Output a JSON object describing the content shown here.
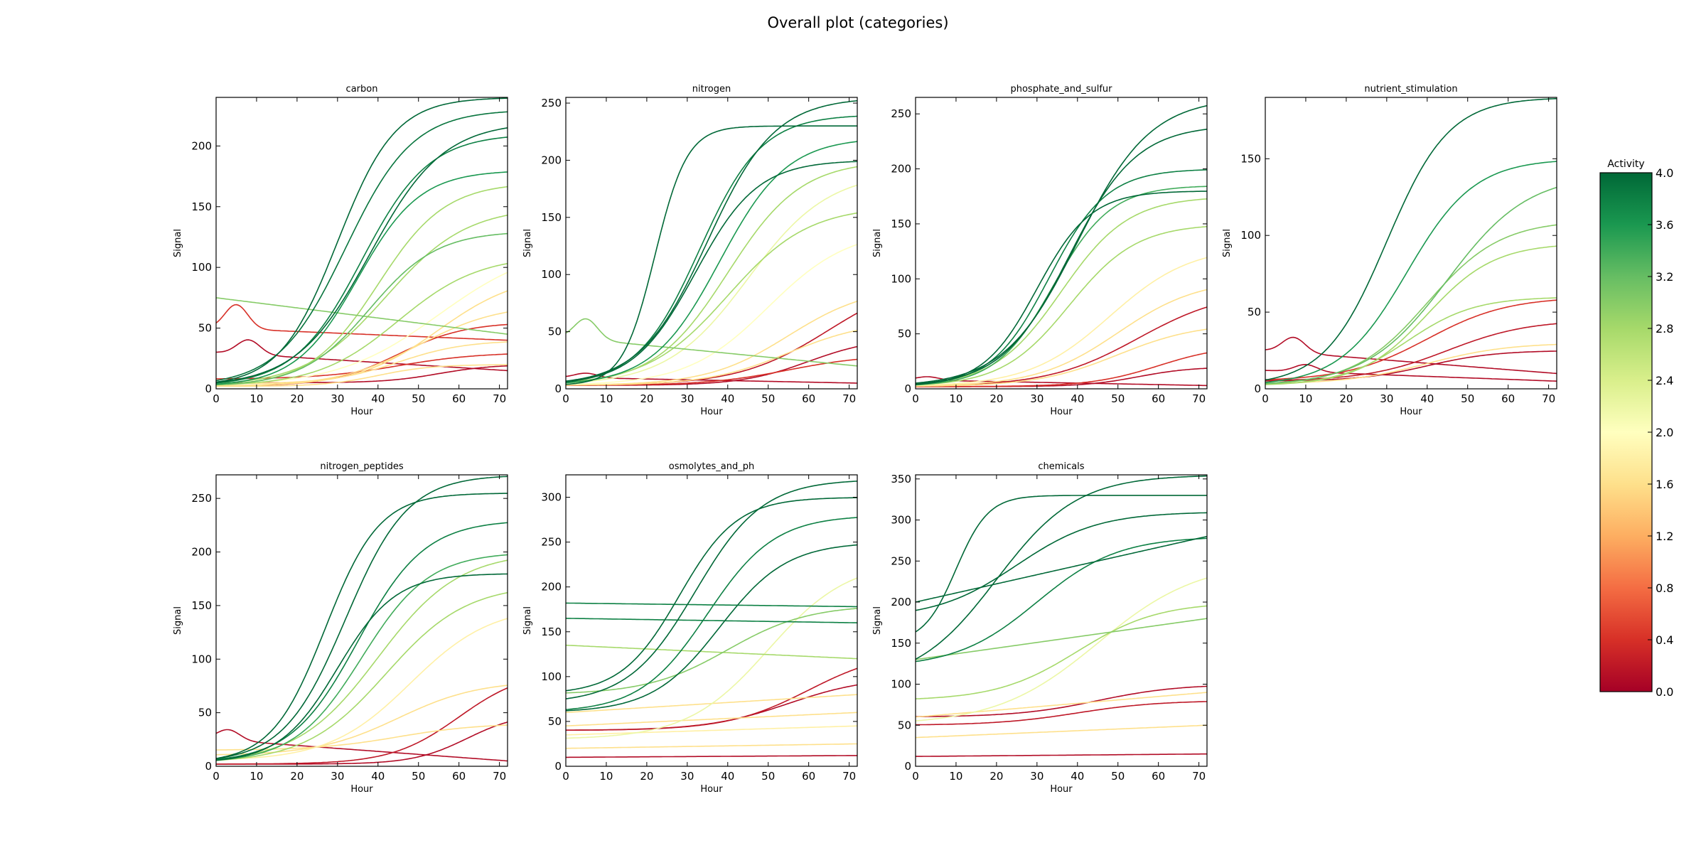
{
  "figure": {
    "title": "Overall plot (categories)",
    "colorbar": {
      "label": "Activity",
      "ticks": [
        "0.0",
        "0.4",
        "0.8",
        "1.2",
        "1.6",
        "2.0",
        "2.4",
        "2.8",
        "3.2",
        "3.6",
        "4.0"
      ],
      "range": [
        0,
        4
      ],
      "colormap": "RdYlGn",
      "stops": [
        "#a50026",
        "#d73027",
        "#f46d43",
        "#fdae61",
        "#fee08b",
        "#ffffbf",
        "#d9ef8b",
        "#a6d96a",
        "#66bd63",
        "#1a9850",
        "#006837"
      ]
    }
  },
  "chart_data": [
    {
      "type": "line",
      "title": "carbon",
      "xlabel": "Hour",
      "ylabel": "Signal",
      "xlim": [
        0,
        72
      ],
      "ylim": [
        0,
        240
      ],
      "xticks": [
        0,
        10,
        20,
        30,
        40,
        50,
        60,
        70
      ],
      "yticks": [
        0,
        50,
        100,
        150,
        200
      ],
      "series": [
        {
          "kind": "flat",
          "activity": 0.1,
          "start": 30,
          "end": 15,
          "peak_t": 8
        },
        {
          "kind": "sig",
          "activity": 0.1,
          "max": 20,
          "mid": 55,
          "k": 0.15,
          "base": 5
        },
        {
          "kind": "sig",
          "activity": 0.4,
          "max": 30,
          "mid": 45,
          "k": 0.1,
          "base": 8
        },
        {
          "kind": "sig",
          "activity": 0.4,
          "max": 55,
          "mid": 45,
          "k": 0.12,
          "base": 2
        },
        {
          "kind": "flat",
          "activity": 0.4,
          "start": 50,
          "end": 40,
          "peak_t": 5
        },
        {
          "kind": "sig",
          "activity": 1.6,
          "max": 20,
          "mid": 40,
          "k": 0.15,
          "base": 2
        },
        {
          "kind": "sig",
          "activity": 1.6,
          "max": 40,
          "mid": 45,
          "k": 0.12,
          "base": 4
        },
        {
          "kind": "sig",
          "activity": 1.6,
          "max": 70,
          "mid": 50,
          "k": 0.1,
          "base": 2
        },
        {
          "kind": "sig",
          "activity": 1.6,
          "max": 95,
          "mid": 55,
          "k": 0.1,
          "base": 2
        },
        {
          "kind": "sig",
          "activity": 2.0,
          "max": 120,
          "mid": 55,
          "k": 0.08,
          "base": 2
        },
        {
          "kind": "sig",
          "activity": 2.8,
          "max": 110,
          "mid": 45,
          "k": 0.1,
          "base": 2
        },
        {
          "kind": "sig",
          "activity": 2.8,
          "max": 150,
          "mid": 42,
          "k": 0.1,
          "base": 2
        },
        {
          "kind": "sig",
          "activity": 2.8,
          "max": 170,
          "mid": 40,
          "k": 0.12,
          "base": 2
        },
        {
          "kind": "sig",
          "activity": 3.2,
          "max": 130,
          "mid": 38,
          "k": 0.12,
          "base": 2
        },
        {
          "kind": "flat",
          "activity": 3.0,
          "start": 75,
          "end": 45,
          "peak_t": 0
        },
        {
          "kind": "sig",
          "activity": 3.6,
          "max": 180,
          "mid": 35,
          "k": 0.13,
          "base": 2
        },
        {
          "kind": "sig",
          "activity": 3.8,
          "max": 210,
          "mid": 36,
          "k": 0.12,
          "base": 2
        },
        {
          "kind": "sig",
          "activity": 3.9,
          "max": 230,
          "mid": 32,
          "k": 0.12,
          "base": 2
        },
        {
          "kind": "sig",
          "activity": 4.0,
          "max": 240,
          "mid": 30,
          "k": 0.14,
          "base": 2
        },
        {
          "kind": "sig",
          "activity": 4.0,
          "max": 220,
          "mid": 38,
          "k": 0.11,
          "base": 2
        }
      ]
    },
    {
      "type": "line",
      "title": "nitrogen",
      "xlabel": "Hour",
      "ylabel": "Signal",
      "xlim": [
        0,
        72
      ],
      "ylim": [
        0,
        255
      ],
      "xticks": [
        0,
        10,
        20,
        30,
        40,
        50,
        60,
        70
      ],
      "yticks": [
        0,
        50,
        100,
        150,
        200,
        250
      ],
      "series": [
        {
          "kind": "flat",
          "activity": 0.1,
          "start": 10,
          "end": 5,
          "peak_t": 5
        },
        {
          "kind": "sig",
          "activity": 0.1,
          "max": 45,
          "mid": 60,
          "k": 0.12,
          "base": 3
        },
        {
          "kind": "sig",
          "activity": 0.2,
          "max": 100,
          "mid": 65,
          "k": 0.09,
          "base": 3
        },
        {
          "kind": "sig",
          "activity": 0.4,
          "max": 30,
          "mid": 55,
          "k": 0.1,
          "base": 3
        },
        {
          "kind": "sig",
          "activity": 1.6,
          "max": 60,
          "mid": 55,
          "k": 0.1,
          "base": 3
        },
        {
          "kind": "sig",
          "activity": 1.6,
          "max": 90,
          "mid": 55,
          "k": 0.1,
          "base": 3
        },
        {
          "kind": "sig",
          "activity": 2.0,
          "max": 140,
          "mid": 50,
          "k": 0.1,
          "base": 3
        },
        {
          "kind": "sig",
          "activity": 2.2,
          "max": 190,
          "mid": 45,
          "k": 0.1,
          "base": 3
        },
        {
          "kind": "sig",
          "activity": 2.8,
          "max": 160,
          "mid": 40,
          "k": 0.1,
          "base": 3
        },
        {
          "kind": "sig",
          "activity": 2.8,
          "max": 200,
          "mid": 40,
          "k": 0.11,
          "base": 3
        },
        {
          "kind": "flat",
          "activity": 3.0,
          "start": 45,
          "end": 20,
          "peak_t": 5
        },
        {
          "kind": "sig",
          "activity": 3.6,
          "max": 220,
          "mid": 38,
          "k": 0.12,
          "base": 3
        },
        {
          "kind": "sig",
          "activity": 3.8,
          "max": 240,
          "mid": 33,
          "k": 0.13,
          "base": 3
        },
        {
          "kind": "sig",
          "activity": 4.0,
          "max": 255,
          "mid": 35,
          "k": 0.12,
          "base": 3
        },
        {
          "kind": "sig",
          "activity": 4.0,
          "max": 230,
          "mid": 22,
          "k": 0.25,
          "base": 3
        },
        {
          "kind": "sig",
          "activity": 4.0,
          "max": 200,
          "mid": 32,
          "k": 0.13,
          "base": 3
        }
      ]
    },
    {
      "type": "line",
      "title": "phosphate_and_sulfur",
      "xlabel": "Hour",
      "ylabel": "Signal",
      "xlim": [
        0,
        72
      ],
      "ylim": [
        0,
        265
      ],
      "xticks": [
        0,
        10,
        20,
        30,
        40,
        50,
        60,
        70
      ],
      "yticks": [
        0,
        50,
        100,
        150,
        200,
        250
      ],
      "series": [
        {
          "kind": "flat",
          "activity": 0.1,
          "start": 8,
          "end": 3,
          "peak_t": 3
        },
        {
          "kind": "sig",
          "activity": 0.1,
          "max": 20,
          "mid": 55,
          "k": 0.15,
          "base": 2
        },
        {
          "kind": "sig",
          "activity": 0.2,
          "max": 90,
          "mid": 55,
          "k": 0.09,
          "base": 2
        },
        {
          "kind": "sig",
          "activity": 0.4,
          "max": 40,
          "mid": 60,
          "k": 0.12,
          "base": 2
        },
        {
          "kind": "sig",
          "activity": 1.6,
          "max": 60,
          "mid": 50,
          "k": 0.1,
          "base": 2
        },
        {
          "kind": "sig",
          "activity": 1.6,
          "max": 100,
          "mid": 50,
          "k": 0.1,
          "base": 2
        },
        {
          "kind": "sig",
          "activity": 1.8,
          "max": 130,
          "mid": 48,
          "k": 0.1,
          "base": 2
        },
        {
          "kind": "sig",
          "activity": 2.8,
          "max": 150,
          "mid": 38,
          "k": 0.12,
          "base": 2
        },
        {
          "kind": "sig",
          "activity": 2.8,
          "max": 175,
          "mid": 36,
          "k": 0.12,
          "base": 2
        },
        {
          "kind": "sig",
          "activity": 3.4,
          "max": 185,
          "mid": 34,
          "k": 0.14,
          "base": 2
        },
        {
          "kind": "sig",
          "activity": 3.8,
          "max": 200,
          "mid": 33,
          "k": 0.14,
          "base": 2
        },
        {
          "kind": "sig",
          "activity": 4.0,
          "max": 240,
          "mid": 38,
          "k": 0.12,
          "base": 2
        },
        {
          "kind": "sig",
          "activity": 4.0,
          "max": 265,
          "mid": 40,
          "k": 0.11,
          "base": 2
        },
        {
          "kind": "sig",
          "activity": 4.0,
          "max": 180,
          "mid": 30,
          "k": 0.15,
          "base": 2
        }
      ]
    },
    {
      "type": "line",
      "title": "nutrient_stimulation",
      "xlabel": "Hour",
      "ylabel": "Signal",
      "xlim": [
        0,
        72
      ],
      "ylim": [
        0,
        190
      ],
      "xticks": [
        0,
        10,
        20,
        30,
        40,
        50,
        60,
        70
      ],
      "yticks": [
        0,
        50,
        100,
        150
      ],
      "series": [
        {
          "kind": "flat",
          "activity": 0.1,
          "start": 12,
          "end": 5,
          "peak_t": 10
        },
        {
          "kind": "flat",
          "activity": 0.1,
          "start": 25,
          "end": 10,
          "peak_t": 7
        },
        {
          "kind": "sig",
          "activity": 0.1,
          "max": 25,
          "mid": 40,
          "k": 0.12,
          "base": 5
        },
        {
          "kind": "sig",
          "activity": 0.2,
          "max": 45,
          "mid": 45,
          "k": 0.1,
          "base": 5
        },
        {
          "kind": "sig",
          "activity": 0.4,
          "max": 60,
          "mid": 40,
          "k": 0.1,
          "base": 5
        },
        {
          "kind": "sig",
          "activity": 1.6,
          "max": 30,
          "mid": 40,
          "k": 0.1,
          "base": 3
        },
        {
          "kind": "sig",
          "activity": 2.8,
          "max": 60,
          "mid": 35,
          "k": 0.12,
          "base": 2
        },
        {
          "kind": "sig",
          "activity": 2.8,
          "max": 95,
          "mid": 40,
          "k": 0.12,
          "base": 2
        },
        {
          "kind": "sig",
          "activity": 3.0,
          "max": 110,
          "mid": 40,
          "k": 0.11,
          "base": 2
        },
        {
          "kind": "sig",
          "activity": 3.2,
          "max": 140,
          "mid": 45,
          "k": 0.1,
          "base": 2
        },
        {
          "kind": "sig",
          "activity": 3.6,
          "max": 150,
          "mid": 35,
          "k": 0.12,
          "base": 2
        },
        {
          "kind": "sig",
          "activity": 4.0,
          "max": 190,
          "mid": 30,
          "k": 0.13,
          "base": 2
        }
      ]
    },
    {
      "type": "line",
      "title": "nitrogen_peptides",
      "xlabel": "Hour",
      "ylabel": "Signal",
      "xlim": [
        0,
        72
      ],
      "ylim": [
        0,
        272
      ],
      "xticks": [
        0,
        10,
        20,
        30,
        40,
        50,
        60,
        70
      ],
      "yticks": [
        0,
        50,
        100,
        150,
        200,
        250
      ],
      "series": [
        {
          "kind": "flat",
          "activity": 0.1,
          "start": 25,
          "end": 5,
          "peak_t": 3
        },
        {
          "kind": "sig",
          "activity": 0.1,
          "max": 50,
          "mid": 62,
          "k": 0.15,
          "base": 2
        },
        {
          "kind": "sig",
          "activity": 0.2,
          "max": 90,
          "mid": 60,
          "k": 0.12,
          "base": 2
        },
        {
          "kind": "sig",
          "activity": 1.6,
          "max": 40,
          "mid": 45,
          "k": 0.1,
          "base": 15
        },
        {
          "kind": "sig",
          "activity": 1.6,
          "max": 80,
          "mid": 45,
          "k": 0.1,
          "base": 10
        },
        {
          "kind": "sig",
          "activity": 1.8,
          "max": 150,
          "mid": 48,
          "k": 0.1,
          "base": 5
        },
        {
          "kind": "sig",
          "activity": 2.8,
          "max": 170,
          "mid": 42,
          "k": 0.1,
          "base": 3
        },
        {
          "kind": "sig",
          "activity": 2.8,
          "max": 200,
          "mid": 40,
          "k": 0.1,
          "base": 3
        },
        {
          "kind": "sig",
          "activity": 3.4,
          "max": 200,
          "mid": 36,
          "k": 0.12,
          "base": 3
        },
        {
          "kind": "sig",
          "activity": 3.8,
          "max": 230,
          "mid": 35,
          "k": 0.12,
          "base": 3
        },
        {
          "kind": "sig",
          "activity": 4.0,
          "max": 272,
          "mid": 32,
          "k": 0.13,
          "base": 3
        },
        {
          "kind": "sig",
          "activity": 4.0,
          "max": 255,
          "mid": 27,
          "k": 0.15,
          "base": 3
        },
        {
          "kind": "sig",
          "activity": 4.0,
          "max": 180,
          "mid": 30,
          "k": 0.14,
          "base": 3
        }
      ]
    },
    {
      "type": "line",
      "title": "osmolytes_and_ph",
      "xlabel": "Hour",
      "ylabel": "Signal",
      "xlim": [
        0,
        72
      ],
      "ylim": [
        0,
        325
      ],
      "xticks": [
        0,
        10,
        20,
        30,
        40,
        50,
        60,
        70
      ],
      "yticks": [
        0,
        50,
        100,
        150,
        200,
        250,
        300
      ],
      "series": [
        {
          "kind": "flat",
          "activity": 0.1,
          "start": 10,
          "end": 12,
          "peak_t": 0
        },
        {
          "kind": "sig",
          "activity": 0.1,
          "max": 100,
          "mid": 55,
          "k": 0.1,
          "base": 40
        },
        {
          "kind": "sig",
          "activity": 0.2,
          "max": 130,
          "mid": 60,
          "k": 0.1,
          "base": 40
        },
        {
          "kind": "flat",
          "activity": 1.6,
          "start": 20,
          "end": 25,
          "peak_t": 0
        },
        {
          "kind": "flat",
          "activity": 1.6,
          "start": 45,
          "end": 60,
          "peak_t": 0
        },
        {
          "kind": "flat",
          "activity": 1.6,
          "start": 60,
          "end": 80,
          "peak_t": 0
        },
        {
          "kind": "flat",
          "activity": 1.8,
          "start": 35,
          "end": 45,
          "peak_t": 0
        },
        {
          "kind": "sig",
          "activity": 2.2,
          "max": 230,
          "mid": 50,
          "k": 0.1,
          "base": 30
        },
        {
          "kind": "flat",
          "activity": 2.8,
          "start": 135,
          "end": 120,
          "peak_t": 0
        },
        {
          "kind": "sig",
          "activity": 3.0,
          "max": 180,
          "mid": 40,
          "k": 0.1,
          "base": 80
        },
        {
          "kind": "flat",
          "activity": 3.8,
          "start": 182,
          "end": 178,
          "peak_t": 0
        },
        {
          "kind": "flat",
          "activity": 3.8,
          "start": 165,
          "end": 160,
          "peak_t": 0
        },
        {
          "kind": "sig",
          "activity": 3.8,
          "max": 280,
          "mid": 35,
          "k": 0.12,
          "base": 60
        },
        {
          "kind": "sig",
          "activity": 4.0,
          "max": 320,
          "mid": 32,
          "k": 0.12,
          "base": 70
        },
        {
          "kind": "sig",
          "activity": 4.0,
          "max": 300,
          "mid": 28,
          "k": 0.14,
          "base": 80
        },
        {
          "kind": "sig",
          "activity": 4.0,
          "max": 250,
          "mid": 38,
          "k": 0.12,
          "base": 60
        }
      ]
    },
    {
      "type": "line",
      "title": "chemicals",
      "xlabel": "Hour",
      "ylabel": "Signal",
      "xlim": [
        0,
        72
      ],
      "ylim": [
        0,
        355
      ],
      "xticks": [
        0,
        10,
        20,
        30,
        40,
        50,
        60,
        70
      ],
      "yticks": [
        0,
        50,
        100,
        150,
        200,
        250,
        300,
        350
      ],
      "series": [
        {
          "kind": "flat",
          "activity": 0.1,
          "start": 12,
          "end": 15,
          "peak_t": 0
        },
        {
          "kind": "sig",
          "activity": 0.1,
          "max": 100,
          "mid": 45,
          "k": 0.1,
          "base": 60
        },
        {
          "kind": "sig",
          "activity": 0.2,
          "max": 80,
          "mid": 40,
          "k": 0.1,
          "base": 50
        },
        {
          "kind": "flat",
          "activity": 1.6,
          "start": 35,
          "end": 50,
          "peak_t": 0
        },
        {
          "kind": "flat",
          "activity": 1.6,
          "start": 60,
          "end": 90,
          "peak_t": 0
        },
        {
          "kind": "sig",
          "activity": 2.2,
          "max": 250,
          "mid": 45,
          "k": 0.08,
          "base": 50
        },
        {
          "kind": "sig",
          "activity": 2.8,
          "max": 200,
          "mid": 40,
          "k": 0.1,
          "base": 80
        },
        {
          "kind": "flat",
          "activity": 3.0,
          "start": 130,
          "end": 180,
          "peak_t": 0
        },
        {
          "kind": "sig",
          "activity": 3.8,
          "max": 280,
          "mid": 30,
          "k": 0.1,
          "base": 120
        },
        {
          "kind": "sig",
          "activity": 4.0,
          "max": 330,
          "mid": 10,
          "k": 0.25,
          "base": 150
        },
        {
          "kind": "sig",
          "activity": 4.0,
          "max": 355,
          "mid": 20,
          "k": 0.1,
          "base": 100
        },
        {
          "kind": "sig",
          "activity": 4.0,
          "max": 310,
          "mid": 25,
          "k": 0.1,
          "base": 180
        },
        {
          "kind": "flat",
          "activity": 4.0,
          "start": 200,
          "end": 280,
          "peak_t": 0
        }
      ]
    }
  ]
}
